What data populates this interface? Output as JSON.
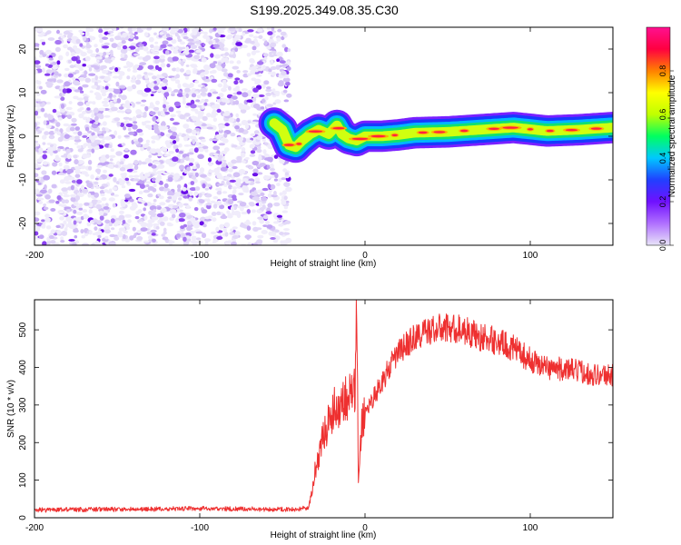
{
  "title": "S199.2025.349.08.35.C30",
  "chart_data": [
    {
      "type": "heatmap",
      "title": "S199.2025.349.08.35.C30",
      "xlabel": "Height of straight line (km)",
      "ylabel": "Frequency (Hz)",
      "xlim": [
        -200,
        150
      ],
      "ylim": [
        -25,
        25
      ],
      "xticks": [
        -200,
        -100,
        0,
        100
      ],
      "yticks": [
        -20,
        -10,
        0,
        10,
        20
      ],
      "colorbar": {
        "label": "Normalized spectral amplitude",
        "range": [
          0.0,
          1.0
        ],
        "ticks": [
          0.0,
          0.2,
          0.4,
          0.6,
          0.8
        ],
        "colors": [
          "#e8e4f8",
          "#b070ff",
          "#7010ff",
          "#2040ff",
          "#00c8ff",
          "#00ff60",
          "#c0ff00",
          "#ffff00",
          "#ff8000",
          "#ff0040",
          "#ff1090"
        ]
      },
      "noise_region": {
        "x_from": -200,
        "x_to": -46,
        "freq_from": -25,
        "freq_to": 25
      },
      "ridge": [
        {
          "x": -55,
          "f": 3.0
        },
        {
          "x": -50,
          "f": 1.5
        },
        {
          "x": -46,
          "f": -2.0
        },
        {
          "x": -42,
          "f": -2.5
        },
        {
          "x": -38,
          "f": -1.0
        },
        {
          "x": -33,
          "f": 0.5
        },
        {
          "x": -28,
          "f": 1.5
        },
        {
          "x": -22,
          "f": 0.5
        },
        {
          "x": -17,
          "f": 2.5
        },
        {
          "x": -14,
          "f": 0.5
        },
        {
          "x": -10,
          "f": -0.5
        },
        {
          "x": -5,
          "f": -1.0
        },
        {
          "x": 0,
          "f": 0.0
        },
        {
          "x": 10,
          "f": 0.0
        },
        {
          "x": 20,
          "f": 0.3
        },
        {
          "x": 30,
          "f": 0.8
        },
        {
          "x": 50,
          "f": 1.0
        },
        {
          "x": 70,
          "f": 1.5
        },
        {
          "x": 90,
          "f": 2.0
        },
        {
          "x": 110,
          "f": 1.2
        },
        {
          "x": 130,
          "f": 1.5
        },
        {
          "x": 150,
          "f": 2.0
        }
      ]
    },
    {
      "type": "line",
      "xlabel": "Height of straight line (km)",
      "ylabel": "SNR (10 * v/v)",
      "xlim": [
        -200,
        150
      ],
      "ylim": [
        0,
        580
      ],
      "xticks": [
        -200,
        -100,
        0,
        100
      ],
      "yticks": [
        0,
        100,
        200,
        300,
        400,
        500
      ],
      "color": "#ee3030",
      "series": [
        {
          "name": "SNR",
          "x": [
            -200,
            -150,
            -100,
            -60,
            -40,
            -34,
            -30,
            -25,
            -20,
            -16,
            -12,
            -8,
            -6,
            -5,
            -4,
            -2,
            0,
            10,
            20,
            30,
            40,
            50,
            60,
            70,
            80,
            90,
            100,
            110,
            120,
            130,
            140,
            150
          ],
          "y": [
            18,
            20,
            22,
            20,
            20,
            25,
            130,
            220,
            280,
            300,
            320,
            330,
            340,
            560,
            90,
            250,
            280,
            360,
            440,
            480,
            500,
            505,
            500,
            480,
            470,
            450,
            420,
            400,
            395,
            390,
            380,
            380
          ]
        }
      ]
    }
  ]
}
